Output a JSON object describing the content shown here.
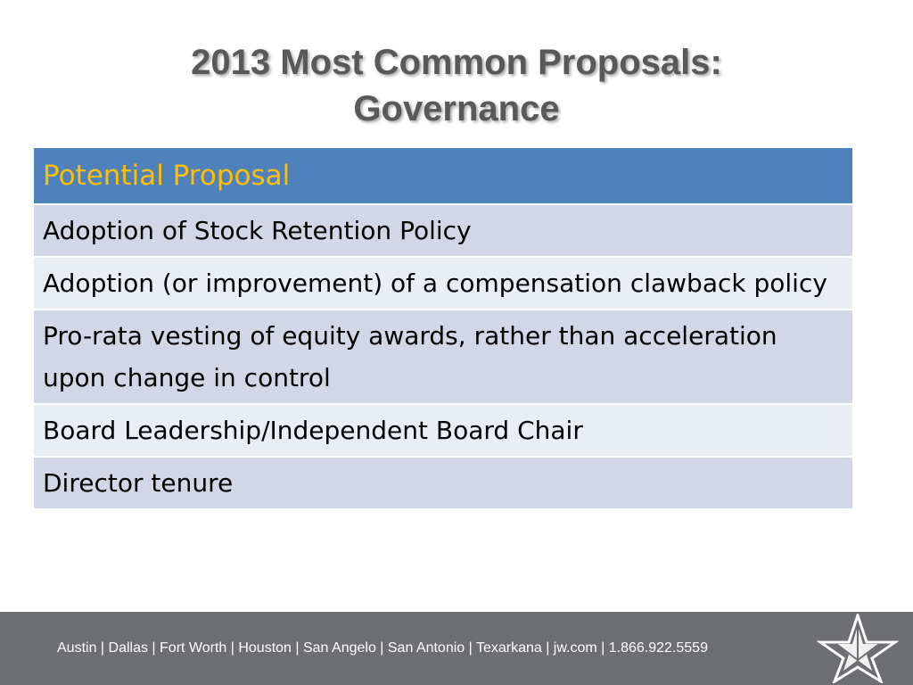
{
  "slide": {
    "title_line1": "2013 Most Common Proposals:",
    "title_line2": "Governance"
  },
  "table": {
    "header": "Potential Proposal",
    "rows": [
      "Adoption of Stock Retention Policy",
      "Adoption (or improvement) of a compensation clawback policy",
      "Pro-rata vesting of equity awards, rather than acceleration upon change in control",
      "Board Leadership/Independent Board Chair",
      "Director tenure"
    ]
  },
  "footer": {
    "text": "Austin | Dallas | Fort Worth | Houston | San Angelo | San Antonio | Texarkana | jw.com | 1.866.922.5559",
    "logo_icon": "star-logo-icon"
  },
  "colors": {
    "header_bg": "#4f81bd",
    "header_text": "#ffc000",
    "row_dark": "#d0d8e8",
    "row_light": "#e9edf4",
    "footer_bg": "#6d6e71"
  }
}
